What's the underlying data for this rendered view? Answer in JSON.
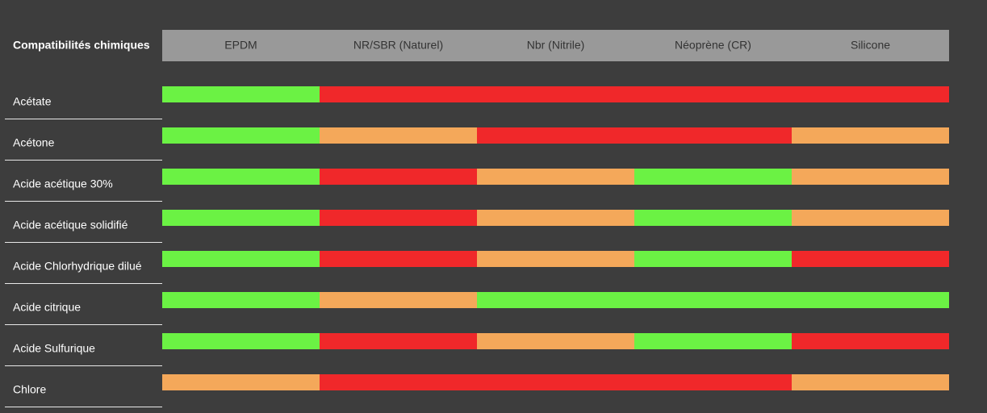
{
  "table": {
    "title": "Compatibilités chimiques",
    "columns": [
      "EPDM",
      "NR/SBR (Naturel)",
      "Nbr (Nitrile)",
      "Néoprène (CR)",
      "Silicone"
    ],
    "header_color": "#999999",
    "rows": [
      {
        "label": "Acétate",
        "cells": [
          "#6bf244",
          "#f0282a",
          "#f0282a",
          "#f0282a",
          "#f0282a"
        ]
      },
      {
        "label": "Acétone",
        "cells": [
          "#6bf244",
          "#f4a85a",
          "#f0282a",
          "#f0282a",
          "#f4a85a"
        ]
      },
      {
        "label": "Acide acétique 30%",
        "cells": [
          "#6bf244",
          "#f0282a",
          "#f4a85a",
          "#6bf244",
          "#f4a85a"
        ]
      },
      {
        "label": "Acide acétique solidifié",
        "cells": [
          "#6bf244",
          "#f0282a",
          "#f4a85a",
          "#6bf244",
          "#f4a85a"
        ]
      },
      {
        "label": "Acide Chlorhydrique dilué",
        "cells": [
          "#6bf244",
          "#f0282a",
          "#f4a85a",
          "#6bf244",
          "#f0282a"
        ]
      },
      {
        "label": "Acide citrique",
        "cells": [
          "#6bf244",
          "#f4a85a",
          "#6bf244",
          "#6bf244",
          "#6bf244"
        ]
      },
      {
        "label": "Acide Sulfurique",
        "cells": [
          "#6bf244",
          "#f0282a",
          "#f4a85a",
          "#6bf244",
          "#f0282a"
        ]
      },
      {
        "label": "Chlore",
        "cells": [
          "#f4a85a",
          "#f0282a",
          "#f0282a",
          "#f0282a",
          "#f4a85a"
        ]
      }
    ]
  }
}
